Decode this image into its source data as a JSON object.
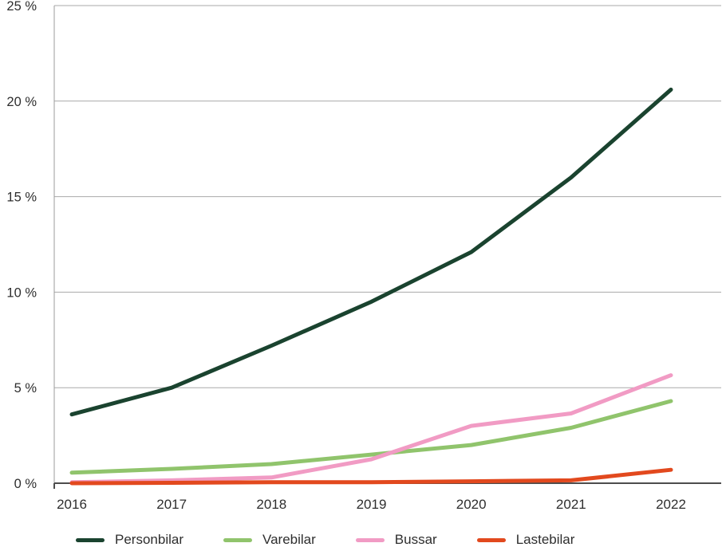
{
  "chart_data": {
    "type": "line",
    "x": [
      2016,
      2017,
      2018,
      2019,
      2020,
      2021,
      2022
    ],
    "x_tick_labels": [
      "2016",
      "2017",
      "2018",
      "2019",
      "2020",
      "2021",
      "2022"
    ],
    "y_tick_labels": [
      "0 %",
      "5 %",
      "10 %",
      "15 %",
      "20 %",
      "25 %"
    ],
    "ylim": [
      0,
      25
    ],
    "ytick_step": 5,
    "grid": true,
    "legend_position": "bottom",
    "series": [
      {
        "name": "Personbilar",
        "color": "#1a432f",
        "values": [
          3.6,
          5.0,
          7.2,
          9.5,
          12.1,
          16.0,
          20.6
        ]
      },
      {
        "name": "Varebilar",
        "color": "#90c46c",
        "values": [
          0.55,
          0.75,
          1.0,
          1.5,
          2.0,
          2.9,
          4.3
        ]
      },
      {
        "name": "Bussar",
        "color": "#f19bc4",
        "values": [
          0.05,
          0.15,
          0.3,
          1.25,
          3.0,
          3.65,
          5.65
        ]
      },
      {
        "name": "Lastebilar",
        "color": "#e2491e",
        "values": [
          0.0,
          0.02,
          0.05,
          0.05,
          0.1,
          0.15,
          0.7
        ]
      }
    ],
    "colors": {
      "gridline": "#a9a9a9",
      "y_axis_line": "#9b9b9b",
      "x_axis_line": "#4d4d4d",
      "text": "#2e2e2e"
    }
  }
}
